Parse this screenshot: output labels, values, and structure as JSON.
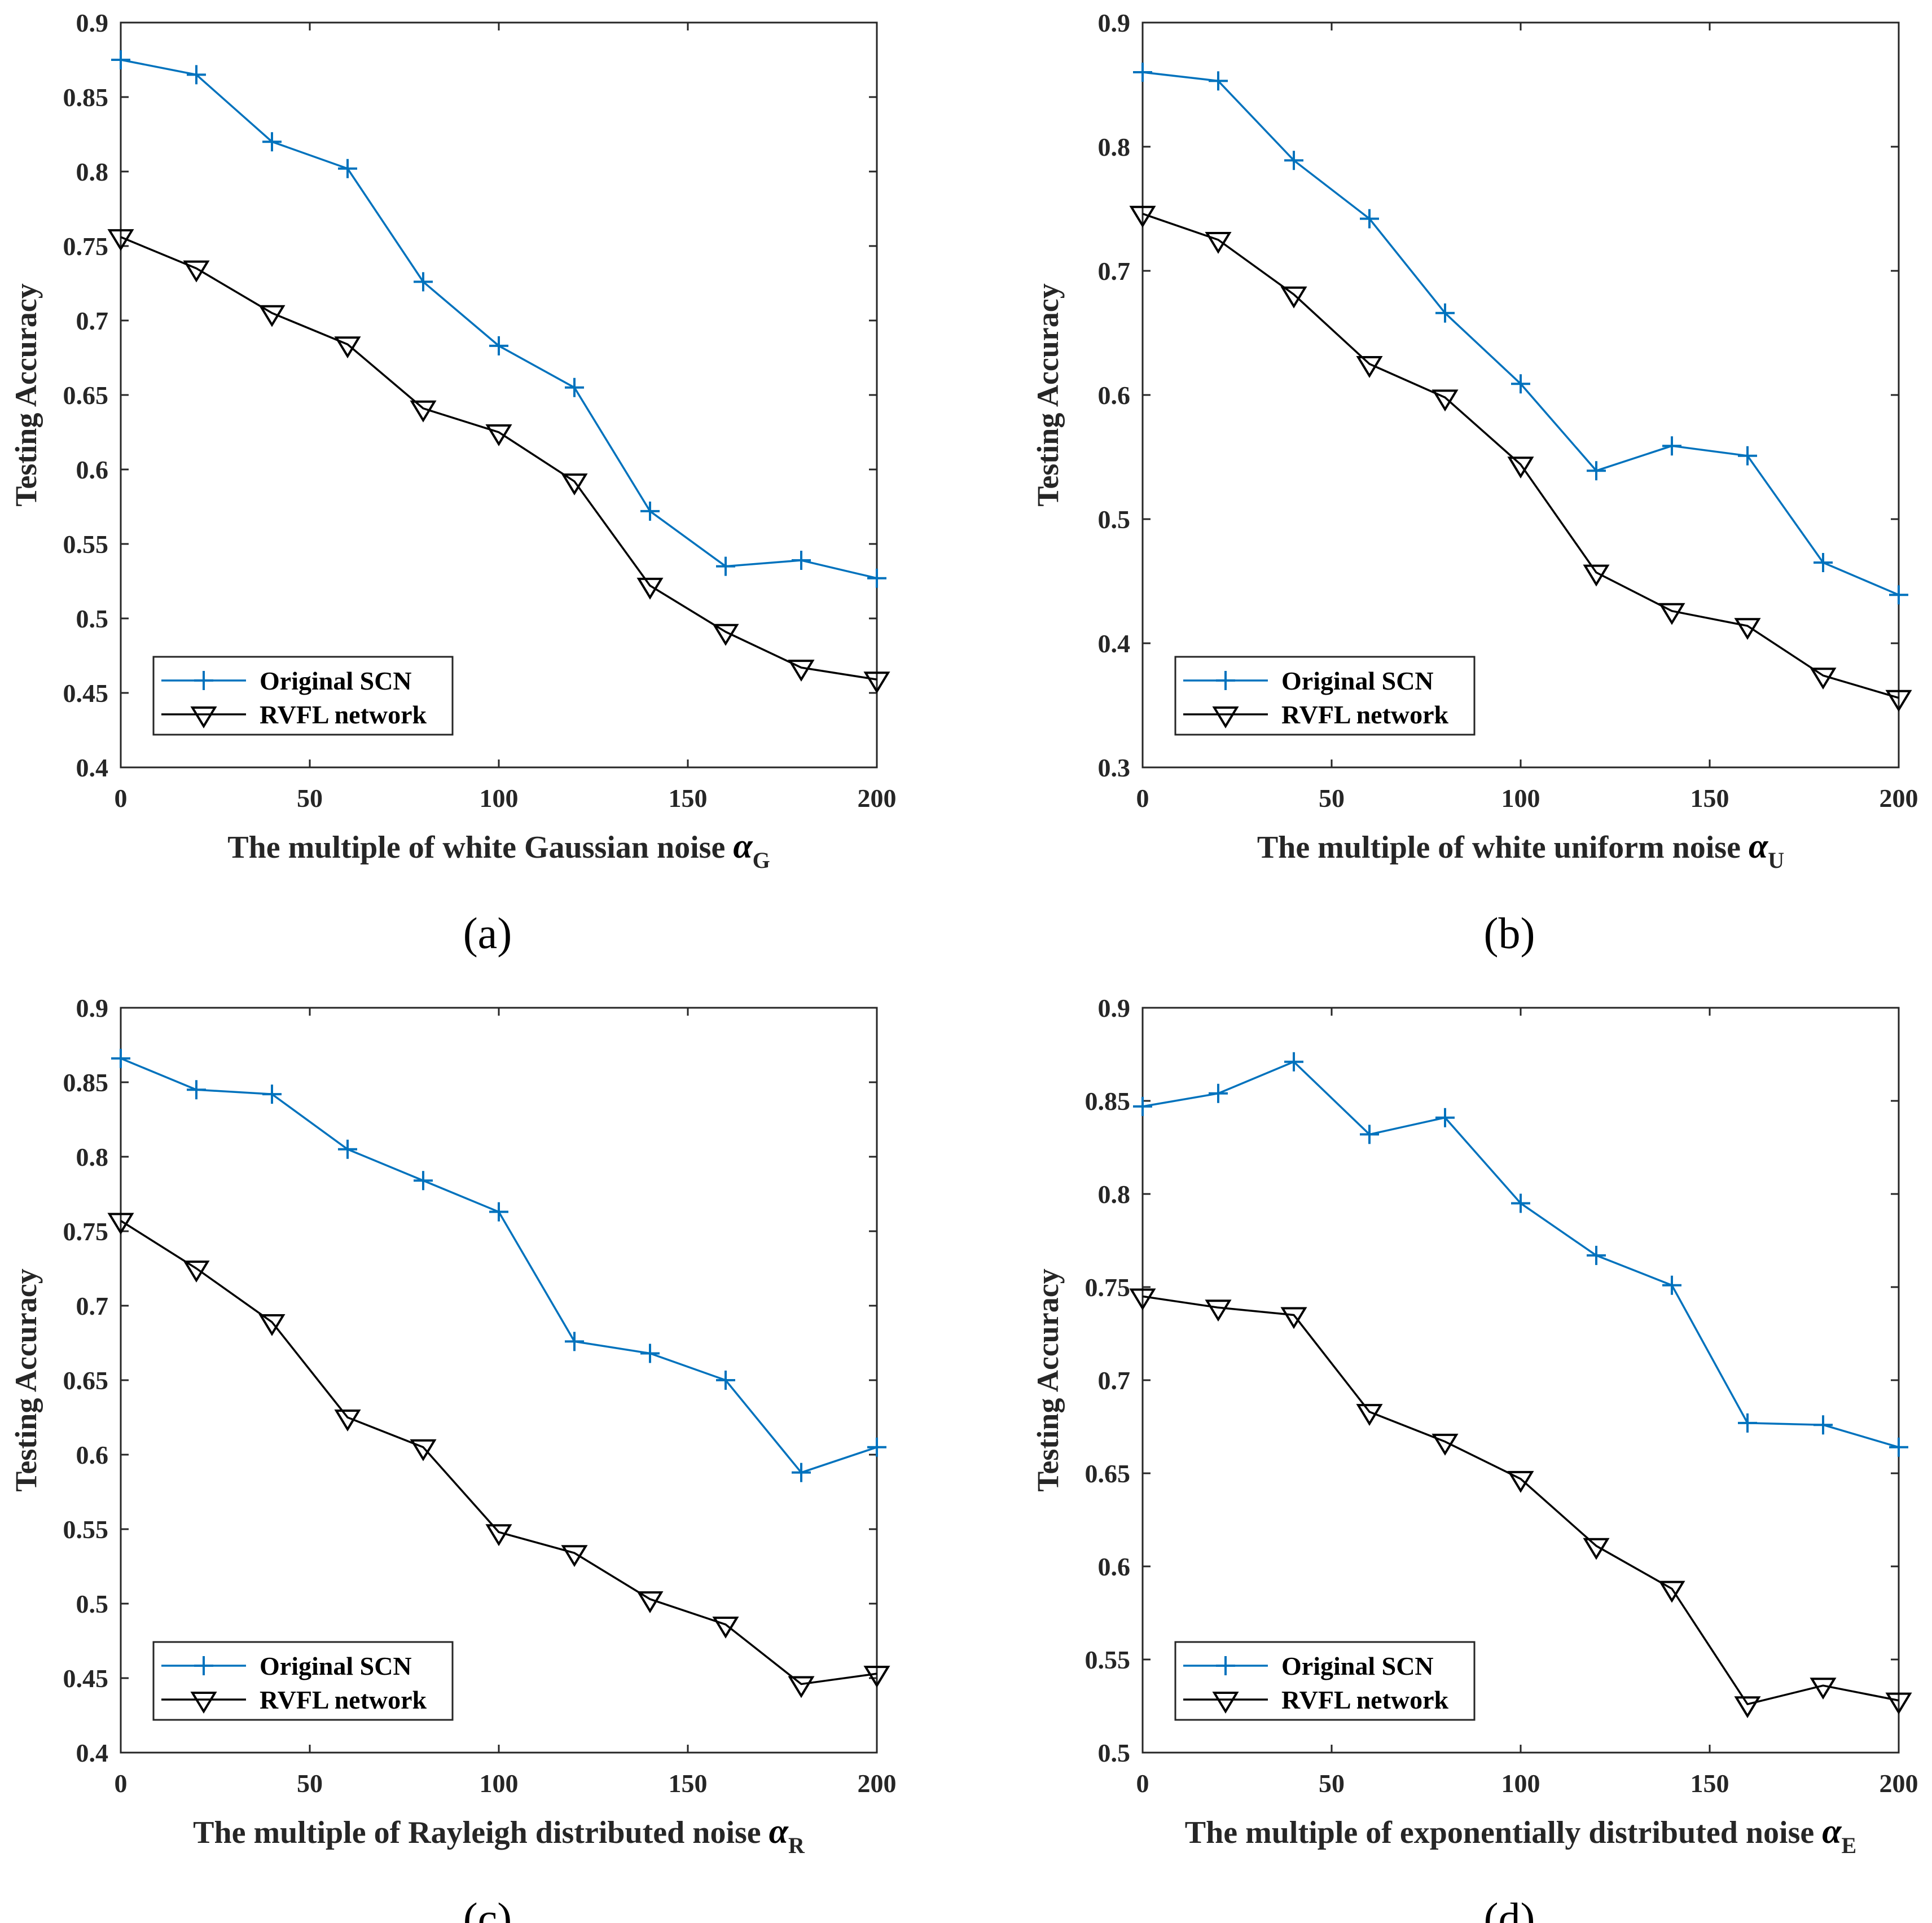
{
  "chart_data": [
    {
      "type": "line",
      "panel_label": "(a)",
      "xlabel": "The multiple of white Gaussian noise",
      "xlabel_symbol": "α",
      "xlabel_subscript": "G",
      "ylabel": "Testing Accuracy",
      "xlim": [
        0,
        200
      ],
      "ylim": [
        0.4,
        0.9
      ],
      "xticks": [
        "0",
        "50",
        "100",
        "150",
        "200"
      ],
      "yticks": [
        "0.4",
        "0.45",
        "0.5",
        "0.55",
        "0.6",
        "0.65",
        "0.7",
        "0.75",
        "0.8",
        "0.85",
        "0.9"
      ],
      "legend_position": "bottom-left",
      "x": [
        0,
        20,
        40,
        60,
        80,
        100,
        120,
        140,
        160,
        180,
        200
      ],
      "series": [
        {
          "name": "Original SCN",
          "marker": "plus",
          "color": "#0072BD",
          "values": [
            0.875,
            0.865,
            0.82,
            0.802,
            0.726,
            0.683,
            0.655,
            0.572,
            0.535,
            0.539,
            0.527
          ]
        },
        {
          "name": "RVFL network",
          "marker": "triangle-down",
          "color": "#000000",
          "values": [
            0.756,
            0.735,
            0.705,
            0.684,
            0.641,
            0.625,
            0.592,
            0.522,
            0.491,
            0.467,
            0.459
          ]
        }
      ]
    },
    {
      "type": "line",
      "panel_label": "(b)",
      "xlabel": "The multiple of white uniform noise",
      "xlabel_symbol": "α",
      "xlabel_subscript": "U",
      "ylabel": "Testing Accuracy",
      "xlim": [
        0,
        200
      ],
      "ylim": [
        0.3,
        0.9
      ],
      "xticks": [
        "0",
        "50",
        "100",
        "150",
        "200"
      ],
      "yticks": [
        "0.3",
        "0.4",
        "0.5",
        "0.6",
        "0.7",
        "0.8",
        "0.9"
      ],
      "legend_position": "bottom-left",
      "x": [
        0,
        20,
        40,
        60,
        80,
        100,
        120,
        140,
        160,
        180,
        200
      ],
      "series": [
        {
          "name": "Original SCN",
          "marker": "plus",
          "color": "#0072BD",
          "values": [
            0.86,
            0.853,
            0.789,
            0.742,
            0.666,
            0.609,
            0.539,
            0.559,
            0.551,
            0.465,
            0.439
          ]
        },
        {
          "name": "RVFL network",
          "marker": "triangle-down",
          "color": "#000000",
          "values": [
            0.746,
            0.725,
            0.681,
            0.625,
            0.598,
            0.544,
            0.457,
            0.426,
            0.414,
            0.374,
            0.356
          ]
        }
      ]
    },
    {
      "type": "line",
      "panel_label": "(c)",
      "xlabel": "The multiple of Rayleigh distributed noise",
      "xlabel_symbol": "α",
      "xlabel_subscript": "R",
      "ylabel": "Testing Accuracy",
      "xlim": [
        0,
        200
      ],
      "ylim": [
        0.4,
        0.9
      ],
      "xticks": [
        "0",
        "50",
        "100",
        "150",
        "200"
      ],
      "yticks": [
        "0.4",
        "0.45",
        "0.5",
        "0.55",
        "0.6",
        "0.65",
        "0.7",
        "0.75",
        "0.8",
        "0.85",
        "0.9"
      ],
      "legend_position": "bottom-left",
      "x": [
        0,
        20,
        40,
        60,
        80,
        100,
        120,
        140,
        160,
        180,
        200
      ],
      "series": [
        {
          "name": "Original SCN",
          "marker": "plus",
          "color": "#0072BD",
          "values": [
            0.866,
            0.845,
            0.842,
            0.805,
            0.784,
            0.763,
            0.676,
            0.668,
            0.65,
            0.588,
            0.605
          ]
        },
        {
          "name": "RVFL network",
          "marker": "triangle-down",
          "color": "#000000",
          "values": [
            0.757,
            0.725,
            0.689,
            0.625,
            0.605,
            0.548,
            0.534,
            0.503,
            0.486,
            0.446,
            0.453
          ]
        }
      ]
    },
    {
      "type": "line",
      "panel_label": "(d)",
      "xlabel": "The multiple of exponentially distributed noise",
      "xlabel_symbol": "α",
      "xlabel_subscript": "E",
      "ylabel": "Testing Accuracy",
      "xlim": [
        0,
        200
      ],
      "ylim": [
        0.5,
        0.9
      ],
      "xticks": [
        "0",
        "50",
        "100",
        "150",
        "200"
      ],
      "yticks": [
        "0.5",
        "0.55",
        "0.6",
        "0.65",
        "0.7",
        "0.75",
        "0.8",
        "0.85",
        "0.9"
      ],
      "legend_position": "bottom-left",
      "x": [
        0,
        20,
        40,
        60,
        80,
        100,
        120,
        140,
        160,
        180,
        200
      ],
      "series": [
        {
          "name": "Original SCN",
          "marker": "plus",
          "color": "#0072BD",
          "values": [
            0.847,
            0.854,
            0.871,
            0.832,
            0.841,
            0.795,
            0.767,
            0.751,
            0.677,
            0.676,
            0.664
          ]
        },
        {
          "name": "RVFL network",
          "marker": "triangle-down",
          "color": "#000000",
          "values": [
            0.745,
            0.739,
            0.735,
            0.683,
            0.667,
            0.647,
            0.611,
            0.588,
            0.526,
            0.536,
            0.528
          ]
        }
      ]
    }
  ]
}
